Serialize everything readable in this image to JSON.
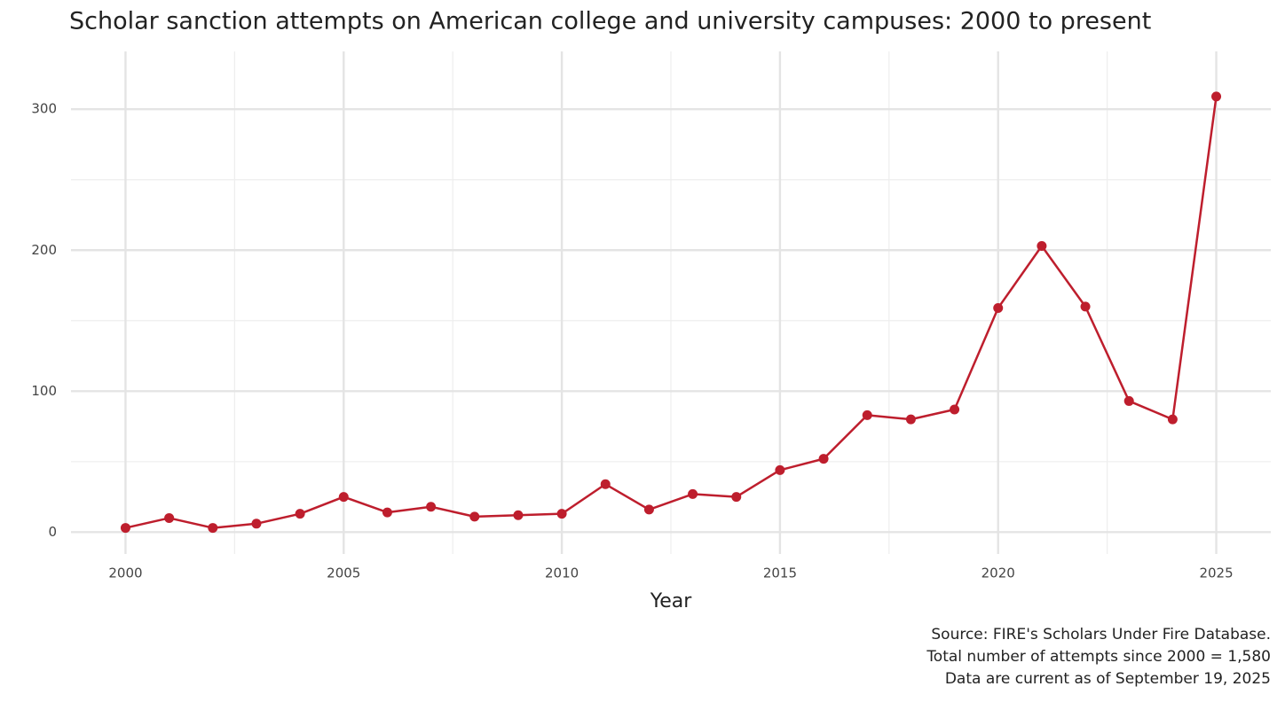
{
  "chart_data": {
    "type": "line",
    "title": "Scholar sanction attempts on American college and university campuses: 2000 to present",
    "x_label": "Year",
    "caption": [
      "Source: FIRE's Scholars Under Fire Database.",
      "Total number of attempts since 2000 = 1,580",
      "Data are current as of September 19, 2025"
    ],
    "x": [
      2000,
      2001,
      2002,
      2003,
      2004,
      2005,
      2006,
      2007,
      2008,
      2009,
      2010,
      2011,
      2012,
      2013,
      2014,
      2015,
      2016,
      2017,
      2018,
      2019,
      2020,
      2021,
      2022,
      2023,
      2024,
      2025
    ],
    "series": [
      {
        "color": "#be1e2d",
        "values": [
          3,
          10,
          3,
          6,
          13,
          25,
          14,
          18,
          11,
          12,
          13,
          34,
          16,
          27,
          25,
          44,
          52,
          83,
          80,
          87,
          159,
          203,
          160,
          93,
          80,
          309
        ]
      }
    ],
    "xlim": [
      1998.75,
      2026.25
    ],
    "xticks": [
      2000,
      2005,
      2010,
      2015,
      2020,
      2025
    ],
    "ylim": [
      -15.5,
      341
    ],
    "yticks": [
      0,
      100,
      200,
      300
    ],
    "grid": true
  }
}
